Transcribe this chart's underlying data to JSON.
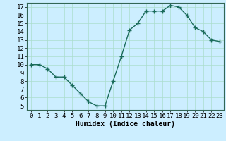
{
  "x": [
    0,
    1,
    2,
    3,
    4,
    5,
    6,
    7,
    8,
    9,
    10,
    11,
    12,
    13,
    14,
    15,
    16,
    17,
    18,
    19,
    20,
    21,
    22,
    23
  ],
  "y": [
    10,
    10,
    9.5,
    8.5,
    8.5,
    7.5,
    6.5,
    5.5,
    5,
    5,
    8,
    11,
    14.2,
    15,
    16.5,
    16.5,
    16.5,
    17.2,
    17,
    16,
    14.5,
    14,
    13,
    12.8
  ],
  "line_color": "#1a6b5a",
  "marker": "+",
  "marker_size": 4,
  "bg_color": "#cceeff",
  "grid_color": "#aaddcc",
  "xlabel": "Humidex (Indice chaleur)",
  "xlim": [
    -0.5,
    23.5
  ],
  "ylim": [
    4.5,
    17.5
  ],
  "yticks": [
    5,
    6,
    7,
    8,
    9,
    10,
    11,
    12,
    13,
    14,
    15,
    16,
    17
  ],
  "xticks": [
    0,
    1,
    2,
    3,
    4,
    5,
    6,
    7,
    8,
    9,
    10,
    11,
    12,
    13,
    14,
    15,
    16,
    17,
    18,
    19,
    20,
    21,
    22,
    23
  ],
  "xlabel_fontsize": 7,
  "tick_fontsize": 6.5,
  "linewidth": 1.0,
  "marker_color": "#1a6b5a"
}
